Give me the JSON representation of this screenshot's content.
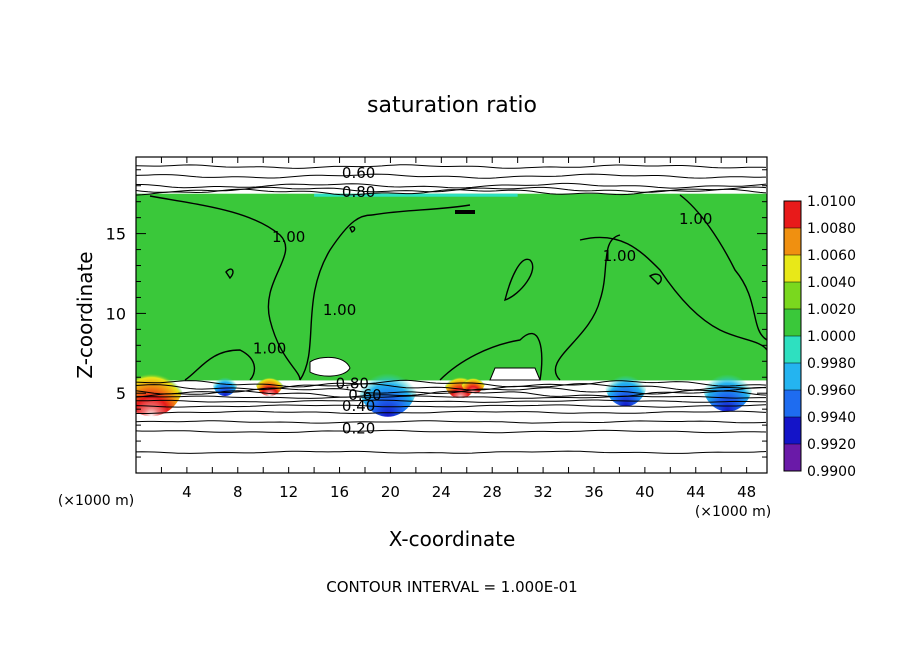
{
  "chart_data": {
    "type": "heatmap",
    "title": "saturation ratio",
    "xlabel": "X-coordinate",
    "ylabel": "Z-coordinate",
    "x_unit": "(×1000 m)",
    "y_unit": "(×1000 m)",
    "xlim": [
      0,
      49.6
    ],
    "ylim": [
      0,
      19.8
    ],
    "x_ticks": [
      4,
      8,
      12,
      16,
      20,
      24,
      28,
      32,
      36,
      40,
      44,
      48
    ],
    "y_ticks": [
      5,
      10,
      15
    ],
    "footer": "CONTOUR INTERVAL = 1.000E-01",
    "colorbar": {
      "levels": [
        "0.9900",
        "0.9920",
        "0.9940",
        "0.9960",
        "0.9980",
        "1.0000",
        "1.0020",
        "1.0040",
        "1.0060",
        "1.0080",
        "1.0100"
      ],
      "colors": [
        "#6a1aa8",
        "#1414c8",
        "#1e6cf0",
        "#24b4f0",
        "#2ee0c0",
        "#3ac83a",
        "#7ad81e",
        "#e8e818",
        "#f09010",
        "#e81a1a",
        "#f07a7a"
      ]
    },
    "field_region": {
      "x": [
        0,
        49.6
      ],
      "z_bottom": 5.8,
      "z_top": 17.5,
      "dominant_value": "1.0000"
    },
    "contour_labels": [
      {
        "text": "0.60",
        "x": 17.5,
        "z": 18.8
      },
      {
        "text": "0.80",
        "x": 17.5,
        "z": 17.6
      },
      {
        "text": "1.00",
        "x": 12.0,
        "z": 14.8
      },
      {
        "text": "1.00",
        "x": 38.0,
        "z": 13.6
      },
      {
        "text": "1.00",
        "x": 44.0,
        "z": 15.9
      },
      {
        "text": "1.00",
        "x": 16.0,
        "z": 10.2
      },
      {
        "text": "1.00",
        "x": 10.5,
        "z": 7.8
      },
      {
        "text": "0.80",
        "x": 17.0,
        "z": 5.6
      },
      {
        "text": "0.60",
        "x": 18.0,
        "z": 4.9
      },
      {
        "text": "0.40",
        "x": 17.5,
        "z": 4.2
      },
      {
        "text": "0.20",
        "x": 17.5,
        "z": 2.8
      }
    ]
  }
}
